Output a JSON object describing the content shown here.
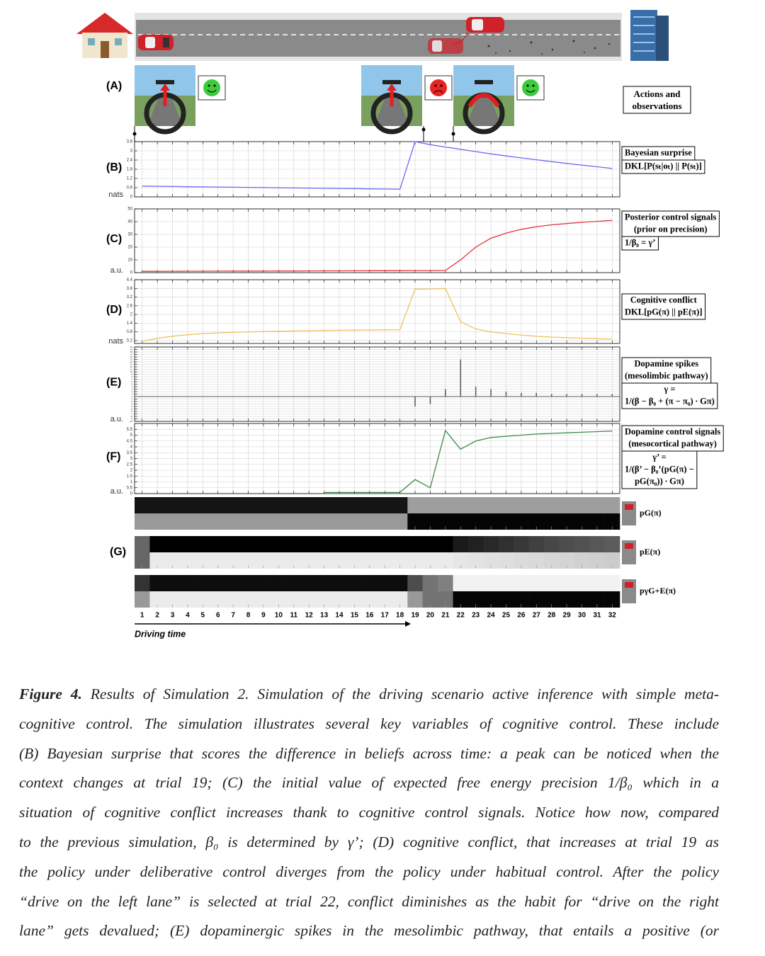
{
  "panel_a": {
    "label": "(A)",
    "box": "Actions and observations"
  },
  "chart_data": [
    {
      "type": "line",
      "label": "(B)",
      "unit": "nats",
      "box": [
        "Bayesian surprise",
        "DKL[P(sₜ|oₜ) || P(sₜ)]"
      ],
      "split": 1,
      "color": "#6b6bf5",
      "grid": true,
      "x": [
        1,
        2,
        3,
        4,
        5,
        6,
        7,
        8,
        9,
        10,
        11,
        12,
        13,
        14,
        15,
        16,
        17,
        18,
        19,
        20,
        21,
        22,
        23,
        24,
        25,
        26,
        27,
        28,
        29,
        30,
        31,
        32
      ],
      "xlim": [
        0.5,
        32.5
      ],
      "ylim": [
        0,
        3.6
      ],
      "yticks": [
        0,
        0.6,
        1.2,
        1.8,
        2.4,
        3,
        3.6
      ],
      "values": [
        0.7,
        0.69,
        0.68,
        0.66,
        0.65,
        0.64,
        0.63,
        0.62,
        0.61,
        0.59,
        0.58,
        0.57,
        0.56,
        0.55,
        0.54,
        0.52,
        0.51,
        0.5,
        3.6,
        3.4,
        3.25,
        3.1,
        2.95,
        2.8,
        2.67,
        2.54,
        2.42,
        2.3,
        2.18,
        2.07,
        1.96,
        1.85
      ]
    },
    {
      "type": "line",
      "label": "(C)",
      "unit": "a.u.",
      "box": [
        "Posterior control signals",
        "(prior on precision)",
        "1/β₀ = γ’"
      ],
      "split": 2,
      "color": "#e8343a",
      "grid": true,
      "x": [
        1,
        2,
        3,
        4,
        5,
        6,
        7,
        8,
        9,
        10,
        11,
        12,
        13,
        14,
        15,
        16,
        17,
        18,
        19,
        20,
        21,
        22,
        23,
        24,
        25,
        26,
        27,
        28,
        29,
        30,
        31,
        32
      ],
      "xlim": [
        0.5,
        32.5
      ],
      "ylim": [
        0,
        50
      ],
      "yticks": [
        0,
        10,
        20,
        30,
        40,
        50
      ],
      "values": [
        1,
        1,
        1.05,
        1.1,
        1.1,
        1.15,
        1.2,
        1.2,
        1.25,
        1.3,
        1.3,
        1.35,
        1.4,
        1.4,
        1.45,
        1.5,
        1.5,
        1.55,
        1.6,
        1.6,
        1.7,
        10,
        20,
        27,
        31,
        34,
        36,
        37.5,
        38.5,
        39.5,
        40.2,
        41
      ]
    },
    {
      "type": "line",
      "label": "(D)",
      "unit": "nats",
      "box": [
        "Cognitive conflict",
        "DKL[pG(π) || pE(π)]"
      ],
      "split": 2,
      "color": "#f0c060",
      "grid": true,
      "x": [
        1,
        2,
        3,
        4,
        5,
        6,
        7,
        8,
        9,
        10,
        11,
        12,
        13,
        14,
        15,
        16,
        17,
        18,
        19,
        20,
        21,
        22,
        23,
        24,
        25,
        26,
        27,
        28,
        29,
        30,
        31,
        32
      ],
      "xlim": [
        0.5,
        32.5
      ],
      "ylim": [
        0,
        4.4
      ],
      "yticks": [
        0.2,
        0.8,
        1.4,
        2,
        2.6,
        3.2,
        3.8,
        4.4
      ],
      "values": [
        0.15,
        0.35,
        0.5,
        0.6,
        0.68,
        0.73,
        0.77,
        0.8,
        0.82,
        0.84,
        0.86,
        0.88,
        0.9,
        0.91,
        0.92,
        0.93,
        0.94,
        0.95,
        3.75,
        3.76,
        3.8,
        1.5,
        1.0,
        0.8,
        0.68,
        0.58,
        0.5,
        0.44,
        0.4,
        0.36,
        0.33,
        0.3
      ]
    },
    {
      "type": "spike",
      "label": "(E)",
      "unit": "a.u.",
      "box": [
        "Dopamine spikes",
        "(mesolimbic pathway)",
        "γ =",
        "1/(β − β₀ + (π − π₀) ∙ Gπ)"
      ],
      "split": 2,
      "color": "#555555",
      "grid": true,
      "x": [
        1,
        2,
        3,
        4,
        5,
        6,
        7,
        8,
        9,
        10,
        11,
        12,
        13,
        14,
        15,
        16,
        17,
        18,
        19,
        20,
        21,
        22,
        23,
        24,
        25,
        26,
        27,
        28,
        29,
        30,
        31,
        32
      ],
      "xlim": [
        0.5,
        32.5
      ],
      "ylim": [
        -10,
        20
      ],
      "yticks": [
        -10,
        -9,
        -8,
        -7,
        -6,
        -5,
        -4,
        -3,
        -2,
        -1,
        0,
        1,
        2,
        3,
        4,
        5,
        6,
        7,
        8,
        9,
        10,
        11,
        12,
        13,
        14,
        15,
        16,
        17,
        18,
        19,
        20
      ],
      "values": [
        0,
        0,
        0,
        0,
        0,
        0,
        0,
        0,
        0,
        0,
        0,
        0,
        0,
        0,
        0,
        0,
        0,
        0,
        -4,
        -3,
        3,
        15,
        4,
        3,
        2,
        1.5,
        1.5,
        1,
        1,
        1,
        1,
        1
      ]
    },
    {
      "type": "line",
      "label": "(F)",
      "unit": "a.u.",
      "box": [
        "Dopamine control signals",
        "(mesocortical pathway)",
        "γ’ =",
        "1/(β’ − β₀’(pG(π) −",
        "pG(π₀)) ∙ Gπ)"
      ],
      "split": 2,
      "color": "#3a8a4a",
      "grid": true,
      "x": [
        1,
        2,
        3,
        4,
        5,
        6,
        7,
        8,
        9,
        10,
        11,
        12,
        13,
        14,
        15,
        16,
        17,
        18,
        19,
        20,
        21,
        22,
        23,
        24,
        25,
        26,
        27,
        28,
        29,
        30,
        31,
        32
      ],
      "xlim": [
        0.5,
        32.5
      ],
      "ylim": [
        0,
        6
      ],
      "yticks": [
        0,
        0.5,
        1,
        1.5,
        2,
        2.5,
        3,
        3.5,
        4,
        4.5,
        5,
        5.5
      ],
      "values": [
        null,
        null,
        null,
        null,
        null,
        null,
        null,
        null,
        null,
        null,
        null,
        null,
        0.1,
        0.1,
        0.1,
        0.1,
        0.1,
        0.1,
        1.2,
        0.5,
        5.4,
        3.8,
        4.5,
        4.8,
        4.9,
        5.0,
        5.1,
        5.15,
        5.2,
        5.25,
        5.3,
        5.35
      ]
    },
    {
      "type": "heatmap",
      "label": "(G)",
      "xlabel": "Driving time",
      "grid": true,
      "x": [
        1,
        2,
        3,
        4,
        5,
        6,
        7,
        8,
        9,
        10,
        11,
        12,
        13,
        14,
        15,
        16,
        17,
        18,
        19,
        20,
        21,
        22,
        23,
        24,
        25,
        26,
        27,
        28,
        29,
        30,
        31,
        32
      ],
      "xlim": [
        0.5,
        32.5
      ],
      "xticks": [
        1,
        2,
        3,
        4,
        5,
        6,
        7,
        8,
        9,
        10,
        11,
        12,
        13,
        14,
        15,
        16,
        17,
        18,
        19,
        20,
        21,
        22,
        23,
        24,
        25,
        26,
        27,
        28,
        29,
        30,
        31,
        32
      ],
      "panels": [
        {
          "name": "pG(π)",
          "rows": [
            [
              0.08,
              0.08,
              0.08,
              0.08,
              0.08,
              0.08,
              0.08,
              0.08,
              0.08,
              0.08,
              0.08,
              0.08,
              0.08,
              0.08,
              0.08,
              0.08,
              0.08,
              0.08,
              0.62,
              0.62,
              0.62,
              0.62,
              0.62,
              0.62,
              0.62,
              0.62,
              0.62,
              0.62,
              0.62,
              0.62,
              0.62,
              0.62
            ],
            [
              0.6,
              0.6,
              0.6,
              0.6,
              0.6,
              0.6,
              0.6,
              0.6,
              0.6,
              0.6,
              0.6,
              0.6,
              0.6,
              0.6,
              0.6,
              0.6,
              0.6,
              0.6,
              0.02,
              0.02,
              0.02,
              0.02,
              0.02,
              0.02,
              0.02,
              0.02,
              0.02,
              0.02,
              0.02,
              0.02,
              0.02,
              0.02
            ]
          ]
        },
        {
          "name": "pE(π)",
          "rows": [
            [
              0.4,
              0,
              0,
              0,
              0,
              0,
              0,
              0,
              0,
              0,
              0,
              0,
              0,
              0,
              0,
              0,
              0,
              0,
              0,
              0,
              0,
              0.1,
              0.13,
              0.16,
              0.19,
              0.22,
              0.25,
              0.28,
              0.3,
              0.32,
              0.34,
              0.36
            ],
            [
              0.4,
              0.92,
              0.92,
              0.92,
              0.92,
              0.92,
              0.92,
              0.92,
              0.92,
              0.92,
              0.92,
              0.92,
              0.92,
              0.92,
              0.92,
              0.92,
              0.92,
              0.92,
              0.92,
              0.92,
              0.92,
              0.9,
              0.89,
              0.88,
              0.87,
              0.86,
              0.85,
              0.84,
              0.83,
              0.82,
              0.81,
              0.8
            ]
          ]
        },
        {
          "name": "pγG+E(π)",
          "rows": [
            [
              0.2,
              0.05,
              0.05,
              0.05,
              0.05,
              0.05,
              0.05,
              0.05,
              0.05,
              0.05,
              0.05,
              0.05,
              0.05,
              0.05,
              0.05,
              0.05,
              0.05,
              0.05,
              0.3,
              0.45,
              0.5,
              0.95,
              0.95,
              0.95,
              0.95,
              0.95,
              0.95,
              0.95,
              0.95,
              0.95,
              0.95,
              0.95
            ],
            [
              0.6,
              0.92,
              0.92,
              0.92,
              0.92,
              0.92,
              0.92,
              0.92,
              0.92,
              0.92,
              0.92,
              0.92,
              0.92,
              0.92,
              0.92,
              0.92,
              0.92,
              0.92,
              0.6,
              0.45,
              0.45,
              0.02,
              0.02,
              0.02,
              0.02,
              0.02,
              0.02,
              0.02,
              0.02,
              0.02,
              0.02,
              0.02
            ]
          ]
        }
      ]
    }
  ],
  "caption": {
    "label": "Figure 4.",
    "lines": [
      " Results of Simulation 2. Simulation of the driving scenario active inference with simple meta-",
      "cognitive control. The simulation illustrates several key variables of cognitive control. These include",
      "(B) Bayesian surprise that scores the difference in beliefs across time: a peak can be noticed when the",
      "context changes at trial 19; (C) the initial value of expected free energy precision 1/β₀ which in a",
      "situation of cognitive conflict increases thank to cognitive control signals. Notice how now, compared",
      "to the previous simulation, β₀ is determined by γ’; (D) cognitive conflict, that increases at trial 19 as",
      "the policy under deliberative control diverges from the policy under habitual control. After the policy",
      "“drive on the left lane” is selected at trial 22, conflict diminishes as the habit for “drive on the right",
      "lane” gets devalued; (E) dopaminergic spikes in the mesolimbic pathway, that entails a positive (or"
    ]
  }
}
